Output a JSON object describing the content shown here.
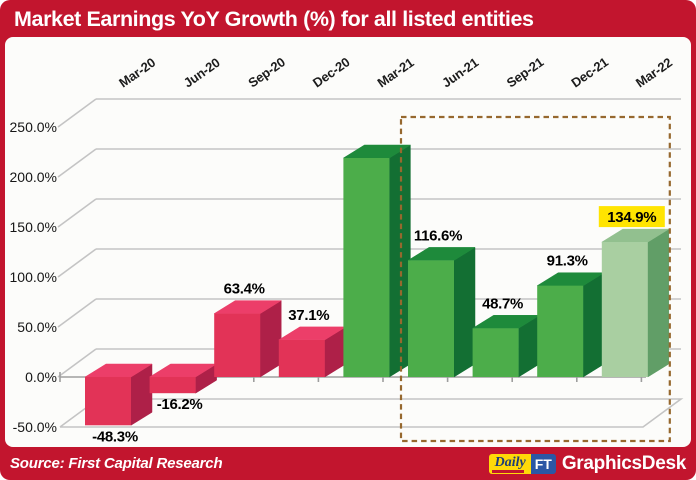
{
  "title": "Market Earnings YoY Growth (%) for all listed entities",
  "footer": {
    "source": "Source: First Capital Research",
    "brand_daily": "Daily",
    "brand_ft": "FT",
    "brand_desk": "GraphicsDesk"
  },
  "colors": {
    "banner_red": "#C2152E",
    "panel_bg": "#FCFCFA",
    "gridline": "#C4C4C4",
    "axis": "#9E9E9E",
    "dashed_box": "#96682E",
    "highlight_yellow": "#FFE400",
    "label_text": "#000000",
    "bars": {
      "pink": {
        "front": "#E23357",
        "top": "#EC3E69",
        "side": "#AE2048"
      },
      "green": {
        "front": "#4CAD4A",
        "top": "#1E8A3B",
        "side": "#136F33"
      },
      "lightgreen": {
        "front": "#A9CFA1",
        "top": "#92C08F",
        "side": "#619E67"
      }
    }
  },
  "chart_data": {
    "type": "bar",
    "title": "Market Earnings YoY Growth (%) for all listed entities",
    "categories": [
      "Mar-20",
      "Jun-20",
      "Sep-20",
      "Dec-20",
      "Mar-21",
      "Jun-21",
      "Sep-21",
      "Dec-21",
      "Mar-22"
    ],
    "values": [
      -48.3,
      -16.2,
      63.4,
      37.1,
      219,
      116.6,
      48.7,
      91.3,
      134.9
    ],
    "data_labels": [
      "-48.3%",
      "-16.2%",
      "63.4%",
      "37.1%",
      "",
      "116.6%",
      "48.7%",
      "91.3%",
      "134.9%"
    ],
    "estimated_indices": [
      4
    ],
    "series_colors": [
      "pink",
      "pink",
      "pink",
      "pink",
      "green",
      "green",
      "green",
      "green",
      "lightgreen"
    ],
    "highlighted_label_index": 8,
    "y_ticks": [
      {
        "label": "250.0%",
        "value": 250
      },
      {
        "label": "200.0%",
        "value": 200
      },
      {
        "label": "150.0%",
        "value": 150
      },
      {
        "label": "100.0%",
        "value": 100
      },
      {
        "label": "50.0%",
        "value": 50
      },
      {
        "label": "0.0%",
        "value": 0
      },
      {
        "label": "-50.0%",
        "value": -50
      }
    ],
    "ylim": [
      -50,
      250
    ],
    "grid": "on",
    "legend": "none",
    "highlight_box": {
      "from_category": "Jun-21",
      "to_category": "Mar-22"
    }
  }
}
